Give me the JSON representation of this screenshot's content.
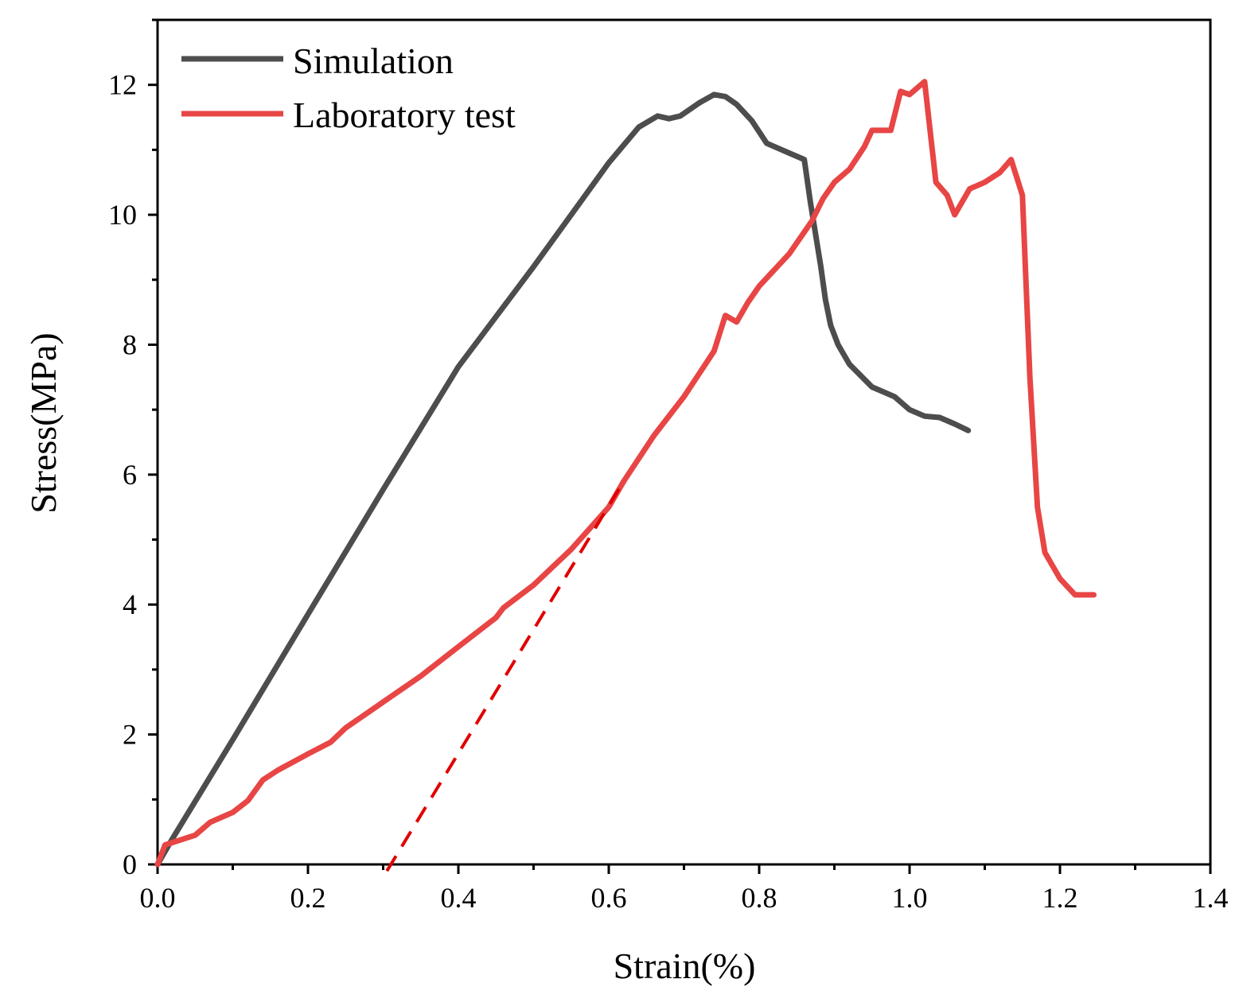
{
  "chart_data": {
    "type": "line",
    "title": "",
    "xlabel": "Strain(%)",
    "ylabel": "Stress(MPa)",
    "xlim": [
      0.0,
      1.4
    ],
    "ylim": [
      0,
      13
    ],
    "x_ticks": [
      0.0,
      0.2,
      0.4,
      0.6,
      0.8,
      1.0,
      1.2,
      1.4
    ],
    "x_tick_labels": [
      "0.0",
      "0.2",
      "0.4",
      "0.6",
      "0.8",
      "1.0",
      "1.2",
      "1.4"
    ],
    "y_ticks": [
      0,
      2,
      4,
      6,
      8,
      10,
      12
    ],
    "y_tick_labels": [
      "0",
      "2",
      "4",
      "6",
      "8",
      "10",
      "12"
    ],
    "grid": false,
    "legend_position": "top-left",
    "series": [
      {
        "name": "Simulation",
        "color": "#4d4d4d",
        "style": "solid",
        "x": [
          0.0,
          0.02,
          0.1,
          0.2,
          0.3,
          0.4,
          0.5,
          0.55,
          0.6,
          0.64,
          0.665,
          0.68,
          0.695,
          0.72,
          0.74,
          0.755,
          0.77,
          0.79,
          0.81,
          0.84,
          0.86,
          0.868,
          0.875,
          0.882,
          0.888,
          0.895,
          0.905,
          0.92,
          0.95,
          0.98,
          1.0,
          1.02,
          1.04,
          1.06,
          1.078
        ],
        "values": [
          0.0,
          0.4,
          1.92,
          3.85,
          5.77,
          7.66,
          9.2,
          10.0,
          10.8,
          11.35,
          11.52,
          11.48,
          11.52,
          11.72,
          11.85,
          11.82,
          11.7,
          11.45,
          11.1,
          10.95,
          10.85,
          10.2,
          9.7,
          9.2,
          8.7,
          8.3,
          8.0,
          7.7,
          7.35,
          7.2,
          7.0,
          6.9,
          6.88,
          6.78,
          6.68
        ]
      },
      {
        "name": "Laboratory test",
        "color": "#e84545",
        "style": "solid",
        "x": [
          0.0,
          0.01,
          0.05,
          0.07,
          0.1,
          0.12,
          0.14,
          0.16,
          0.2,
          0.23,
          0.25,
          0.3,
          0.35,
          0.4,
          0.45,
          0.46,
          0.5,
          0.55,
          0.6,
          0.62,
          0.66,
          0.68,
          0.7,
          0.72,
          0.74,
          0.755,
          0.77,
          0.785,
          0.8,
          0.84,
          0.87,
          0.885,
          0.9,
          0.92,
          0.94,
          0.95,
          0.975,
          0.988,
          1.0,
          1.02,
          1.035,
          1.05,
          1.06,
          1.08,
          1.1,
          1.12,
          1.135,
          1.15,
          1.16,
          1.17,
          1.18,
          1.2,
          1.22,
          1.245
        ],
        "values": [
          0.0,
          0.3,
          0.45,
          0.65,
          0.8,
          0.98,
          1.3,
          1.45,
          1.7,
          1.88,
          2.1,
          2.5,
          2.9,
          3.35,
          3.8,
          3.95,
          4.3,
          4.85,
          5.5,
          5.9,
          6.6,
          6.9,
          7.2,
          7.55,
          7.9,
          8.45,
          8.35,
          8.65,
          8.9,
          9.4,
          9.9,
          10.25,
          10.5,
          10.7,
          11.05,
          11.3,
          11.3,
          11.9,
          11.85,
          12.05,
          10.5,
          10.3,
          10.0,
          10.4,
          10.5,
          10.65,
          10.85,
          10.3,
          7.5,
          5.5,
          4.8,
          4.4,
          4.15,
          4.15
        ]
      },
      {
        "name": "offset line",
        "color": "#e10000",
        "style": "dashed",
        "show_in_legend": false,
        "x": [
          0.305,
          0.62
        ],
        "values": [
          -0.1,
          5.9
        ]
      }
    ]
  }
}
